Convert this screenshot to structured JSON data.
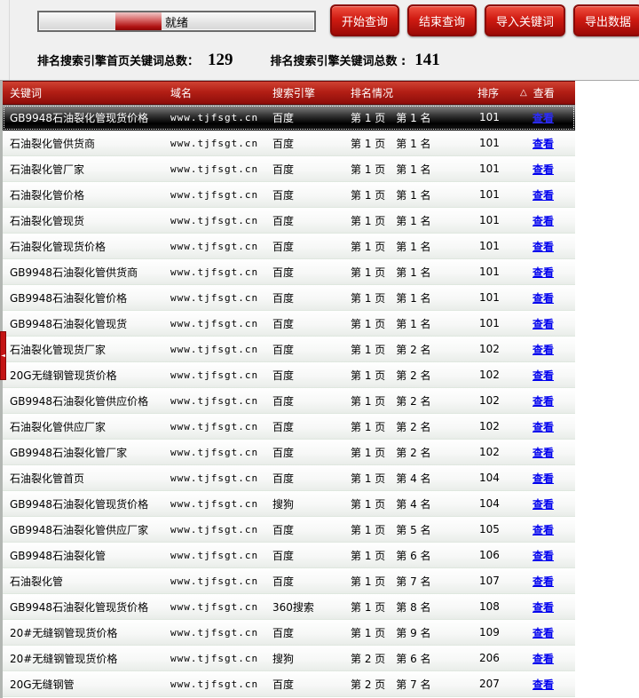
{
  "progress": {
    "status_label": "就绪"
  },
  "toolbar": {
    "buttons": [
      {
        "label": "开始查询"
      },
      {
        "label": "结束查询"
      },
      {
        "label": "导入关键词"
      },
      {
        "label": "导出数据"
      }
    ]
  },
  "stats": {
    "first_page_label": "排名搜索引擎首页关键词总数：",
    "first_page_value": "129",
    "total_label": "排名搜索引擎关键词总数 :",
    "total_value": "141"
  },
  "icons": {
    "sort_indicator": "△",
    "panel_handle_arrow": "◄"
  },
  "colors": {
    "accent_red": "#b31f15",
    "button_red": "#d01b12",
    "link_blue": "#0000ee",
    "selected_row": "#000000",
    "panel_bg": "#f0f0f0"
  },
  "table": {
    "columns": {
      "keyword": "关键词",
      "domain": "域名",
      "engine": "搜索引擎",
      "rank": "排名情况",
      "sort": "排序",
      "view": "查看"
    },
    "view_link_label": "查看",
    "rows": [
      {
        "keyword": "GB9948石油裂化管现货价格",
        "domain": "www.tjfsgt.cn",
        "engine": "百度",
        "rank_text": "第 1 页　第 1 名",
        "sort": "101",
        "selected": true
      },
      {
        "keyword": "石油裂化管供货商",
        "domain": "www.tjfsgt.cn",
        "engine": "百度",
        "rank_text": "第 1 页　第 1 名",
        "sort": "101",
        "selected": false
      },
      {
        "keyword": "石油裂化管厂家",
        "domain": "www.tjfsgt.cn",
        "engine": "百度",
        "rank_text": "第 1 页　第 1 名",
        "sort": "101",
        "selected": false
      },
      {
        "keyword": "石油裂化管价格",
        "domain": "www.tjfsgt.cn",
        "engine": "百度",
        "rank_text": "第 1 页　第 1 名",
        "sort": "101",
        "selected": false
      },
      {
        "keyword": "石油裂化管现货",
        "domain": "www.tjfsgt.cn",
        "engine": "百度",
        "rank_text": "第 1 页　第 1 名",
        "sort": "101",
        "selected": false
      },
      {
        "keyword": "石油裂化管现货价格",
        "domain": "www.tjfsgt.cn",
        "engine": "百度",
        "rank_text": "第 1 页　第 1 名",
        "sort": "101",
        "selected": false
      },
      {
        "keyword": "GB9948石油裂化管供货商",
        "domain": "www.tjfsgt.cn",
        "engine": "百度",
        "rank_text": "第 1 页　第 1 名",
        "sort": "101",
        "selected": false
      },
      {
        "keyword": "GB9948石油裂化管价格",
        "domain": "www.tjfsgt.cn",
        "engine": "百度",
        "rank_text": "第 1 页　第 1 名",
        "sort": "101",
        "selected": false
      },
      {
        "keyword": "GB9948石油裂化管现货",
        "domain": "www.tjfsgt.cn",
        "engine": "百度",
        "rank_text": "第 1 页　第 1 名",
        "sort": "101",
        "selected": false
      },
      {
        "keyword": "石油裂化管现货厂家",
        "domain": "www.tjfsgt.cn",
        "engine": "百度",
        "rank_text": "第 1 页　第 2 名",
        "sort": "102",
        "selected": false
      },
      {
        "keyword": "20G无缝钢管现货价格",
        "domain": "www.tjfsgt.cn",
        "engine": "百度",
        "rank_text": "第 1 页　第 2 名",
        "sort": "102",
        "selected": false
      },
      {
        "keyword": "GB9948石油裂化管供应价格",
        "domain": "www.tjfsgt.cn",
        "engine": "百度",
        "rank_text": "第 1 页　第 2 名",
        "sort": "102",
        "selected": false
      },
      {
        "keyword": "石油裂化管供应厂家",
        "domain": "www.tjfsgt.cn",
        "engine": "百度",
        "rank_text": "第 1 页　第 2 名",
        "sort": "102",
        "selected": false
      },
      {
        "keyword": "GB9948石油裂化管厂家",
        "domain": "www.tjfsgt.cn",
        "engine": "百度",
        "rank_text": "第 1 页　第 2 名",
        "sort": "102",
        "selected": false
      },
      {
        "keyword": "石油裂化管首页",
        "domain": "www.tjfsgt.cn",
        "engine": "百度",
        "rank_text": "第 1 页　第 4 名",
        "sort": "104",
        "selected": false
      },
      {
        "keyword": "GB9948石油裂化管现货价格",
        "domain": "www.tjfsgt.cn",
        "engine": "搜狗",
        "rank_text": "第 1 页　第 4 名",
        "sort": "104",
        "selected": false
      },
      {
        "keyword": "GB9948石油裂化管供应厂家",
        "domain": "www.tjfsgt.cn",
        "engine": "百度",
        "rank_text": "第 1 页　第 5 名",
        "sort": "105",
        "selected": false
      },
      {
        "keyword": "GB9948石油裂化管",
        "domain": "www.tjfsgt.cn",
        "engine": "百度",
        "rank_text": "第 1 页　第 6 名",
        "sort": "106",
        "selected": false
      },
      {
        "keyword": "石油裂化管",
        "domain": "www.tjfsgt.cn",
        "engine": "百度",
        "rank_text": "第 1 页　第 7 名",
        "sort": "107",
        "selected": false
      },
      {
        "keyword": "GB9948石油裂化管现货价格",
        "domain": "www.tjfsgt.cn",
        "engine": "360搜索",
        "rank_text": "第 1 页　第 8 名",
        "sort": "108",
        "selected": false
      },
      {
        "keyword": "20#无缝钢管现货价格",
        "domain": "www.tjfsgt.cn",
        "engine": "百度",
        "rank_text": "第 1 页　第 9 名",
        "sort": "109",
        "selected": false
      },
      {
        "keyword": "20#无缝钢管现货价格",
        "domain": "www.tjfsgt.cn",
        "engine": "搜狗",
        "rank_text": "第 2 页　第 6 名",
        "sort": "206",
        "selected": false
      },
      {
        "keyword": "20G无缝钢管",
        "domain": "www.tjfsgt.cn",
        "engine": "百度",
        "rank_text": "第 2 页　第 7 名",
        "sort": "207",
        "selected": false
      }
    ]
  },
  "side_panel": {
    "handle_tooltip": ""
  }
}
